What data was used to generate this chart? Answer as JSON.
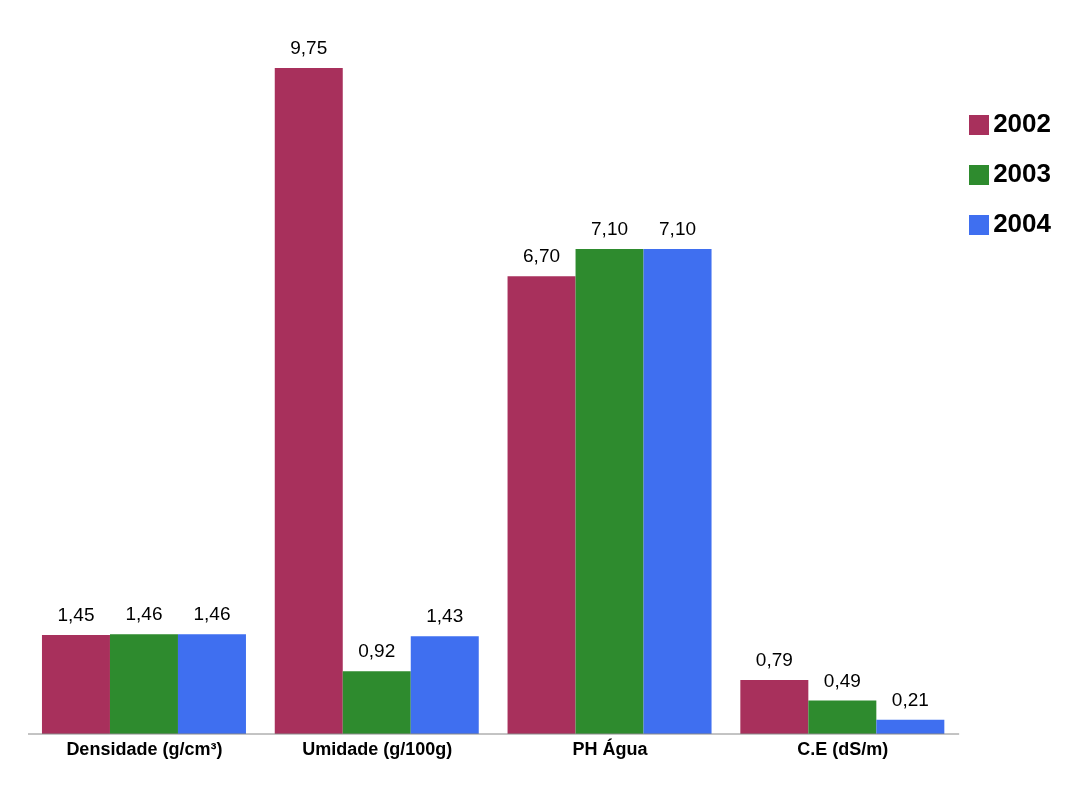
{
  "chart_data": {
    "type": "bar",
    "categories": [
      "Densidade (g/cm³)",
      "Umidade (g/100g)",
      "PH Água",
      "C.E (dS/m)"
    ],
    "series": [
      {
        "name": "2002",
        "color": "#a8305c",
        "values": [
          1.45,
          9.75,
          6.7,
          0.79
        ],
        "value_labels": [
          "1,45",
          "9,75",
          "6,70",
          "0,79"
        ]
      },
      {
        "name": "2003",
        "color": "#2e8b2e",
        "values": [
          1.46,
          0.92,
          7.1,
          0.49
        ],
        "value_labels": [
          "1,46",
          "0,92",
          "7,10",
          "0,49"
        ]
      },
      {
        "name": "2004",
        "color": "#3f6ff0",
        "values": [
          1.46,
          1.43,
          7.1,
          0.21
        ],
        "value_labels": [
          "1,46",
          "1,43",
          "7,10",
          "0,21"
        ]
      }
    ],
    "legend": "top right",
    "grid": false
  }
}
